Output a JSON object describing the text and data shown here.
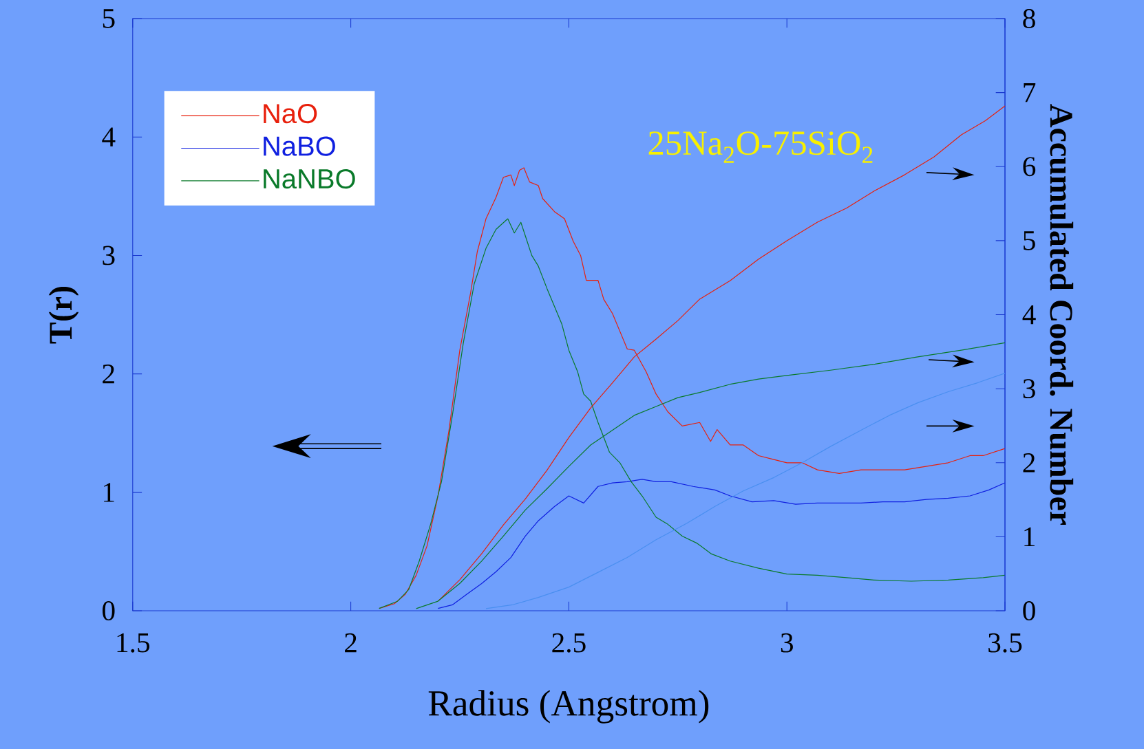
{
  "chart_data": {
    "type": "line",
    "xlabel": "Radius (Angstrom)",
    "ylabel": "T(r)",
    "y2label": "Accumulated Coord. Number",
    "annotations": [
      "25Na$_{2}$O-75SiO$_{2}$"
    ],
    "xlim": [
      1.5,
      3.5
    ],
    "xticks": [
      1.5,
      2,
      2.5,
      3,
      3.5
    ],
    "ylim": [
      0,
      5
    ],
    "yticks": [
      0,
      1,
      2,
      3,
      4,
      5
    ],
    "y2lim": [
      0,
      8
    ],
    "y2ticks": [
      0,
      1,
      2,
      3,
      4,
      5,
      6,
      7,
      8
    ],
    "legend": "top left",
    "series": [
      {
        "name": "NaO",
        "color": "#e8200c",
        "x": [
          2.065,
          2.1,
          2.125,
          2.15,
          2.175,
          2.2,
          2.225,
          2.25,
          2.275,
          2.29,
          2.31,
          2.333,
          2.35,
          2.367,
          2.375,
          2.387,
          2.397,
          2.41,
          2.43,
          2.44,
          2.467,
          2.49,
          2.51,
          2.527,
          2.54,
          2.567,
          2.58,
          2.6,
          2.617,
          2.634,
          2.65,
          2.677,
          2.7,
          2.727,
          2.76,
          2.8,
          2.825,
          2.84,
          2.87,
          2.9,
          2.935,
          2.967,
          3.0,
          3.035,
          3.07,
          3.12,
          3.17,
          3.22,
          3.27,
          3.32,
          3.37,
          3.42,
          3.45,
          3.5
        ],
        "values": [
          0.02,
          0.06,
          0.14,
          0.3,
          0.55,
          0.97,
          1.52,
          2.2,
          2.69,
          3.03,
          3.31,
          3.49,
          3.66,
          3.68,
          3.59,
          3.72,
          3.74,
          3.62,
          3.59,
          3.48,
          3.37,
          3.31,
          3.12,
          3.0,
          2.79,
          2.79,
          2.63,
          2.51,
          2.36,
          2.21,
          2.2,
          2.02,
          1.83,
          1.68,
          1.56,
          1.59,
          1.43,
          1.53,
          1.4,
          1.4,
          1.31,
          1.28,
          1.25,
          1.25,
          1.19,
          1.16,
          1.19,
          1.19,
          1.19,
          1.22,
          1.25,
          1.31,
          1.31,
          1.37
        ]
      },
      {
        "name": "NaBO",
        "color": "#1020e0",
        "x": [
          2.2,
          2.233,
          2.266,
          2.3,
          2.333,
          2.367,
          2.4,
          2.43,
          2.467,
          2.5,
          2.534,
          2.567,
          2.6,
          2.634,
          2.668,
          2.7,
          2.735,
          2.785,
          2.835,
          2.87,
          2.92,
          2.97,
          3.02,
          3.07,
          3.12,
          3.17,
          3.22,
          3.27,
          3.32,
          3.37,
          3.42,
          3.463,
          3.5
        ],
        "values": [
          0.02,
          0.05,
          0.14,
          0.23,
          0.33,
          0.45,
          0.63,
          0.76,
          0.88,
          0.97,
          0.91,
          1.05,
          1.08,
          1.09,
          1.11,
          1.09,
          1.09,
          1.05,
          1.02,
          0.97,
          0.92,
          0.93,
          0.9,
          0.91,
          0.91,
          0.91,
          0.92,
          0.92,
          0.94,
          0.95,
          0.97,
          1.02,
          1.08
        ]
      },
      {
        "name": "NaNBO",
        "color": "#0a7a2a",
        "x": [
          2.065,
          2.107,
          2.133,
          2.157,
          2.183,
          2.208,
          2.233,
          2.258,
          2.283,
          2.31,
          2.333,
          2.36,
          2.375,
          2.39,
          2.415,
          2.43,
          2.45,
          2.467,
          2.484,
          2.5,
          2.52,
          2.534,
          2.55,
          2.567,
          2.593,
          2.617,
          2.643,
          2.668,
          2.7,
          2.727,
          2.76,
          2.794,
          2.827,
          2.87,
          2.935,
          3.0,
          3.07,
          3.137,
          3.2,
          3.285,
          3.37,
          3.45,
          3.5
        ],
        "values": [
          0.02,
          0.08,
          0.18,
          0.42,
          0.73,
          1.09,
          1.65,
          2.26,
          2.76,
          3.06,
          3.22,
          3.31,
          3.19,
          3.28,
          3.0,
          2.91,
          2.72,
          2.57,
          2.42,
          2.2,
          2.02,
          1.83,
          1.77,
          1.59,
          1.34,
          1.25,
          1.09,
          0.97,
          0.79,
          0.73,
          0.63,
          0.57,
          0.48,
          0.42,
          0.36,
          0.31,
          0.3,
          0.28,
          0.26,
          0.25,
          0.26,
          0.28,
          0.3
        ]
      },
      {
        "color": "#e8200c",
        "axis": "y2",
        "x": [
          2.2,
          2.25,
          2.3,
          2.35,
          2.4,
          2.45,
          2.5,
          2.55,
          2.6,
          2.65,
          2.7,
          2.75,
          2.8,
          2.87,
          2.935,
          3.0,
          3.07,
          3.137,
          3.2,
          3.27,
          3.337,
          3.4,
          3.455,
          3.5
        ],
        "values": [
          0.13,
          0.42,
          0.77,
          1.16,
          1.51,
          1.9,
          2.34,
          2.74,
          3.08,
          3.43,
          3.67,
          3.92,
          4.21,
          4.46,
          4.75,
          5.0,
          5.25,
          5.44,
          5.67,
          5.89,
          6.13,
          6.43,
          6.62,
          6.82
        ]
      },
      {
        "color": "#4a8ff0",
        "axis": "y2",
        "x": [
          2.31,
          2.37,
          2.43,
          2.5,
          2.567,
          2.634,
          2.7,
          2.77,
          2.835,
          2.9,
          2.97,
          3.035,
          3.1,
          3.17,
          3.235,
          3.3,
          3.37,
          3.437,
          3.5
        ],
        "values": [
          0.03,
          0.08,
          0.18,
          0.32,
          0.52,
          0.72,
          0.96,
          1.18,
          1.41,
          1.62,
          1.8,
          2.0,
          2.22,
          2.44,
          2.64,
          2.81,
          2.96,
          3.08,
          3.21
        ]
      },
      {
        "color": "#0a7a2a",
        "axis": "y2",
        "x": [
          2.15,
          2.2,
          2.25,
          2.3,
          2.35,
          2.4,
          2.45,
          2.5,
          2.55,
          2.6,
          2.65,
          2.7,
          2.75,
          2.8,
          2.87,
          2.935,
          3.0,
          3.1,
          3.2,
          3.3,
          3.4,
          3.5
        ],
        "values": [
          0.03,
          0.13,
          0.37,
          0.67,
          1.01,
          1.36,
          1.65,
          1.95,
          2.24,
          2.44,
          2.64,
          2.76,
          2.88,
          2.95,
          3.06,
          3.13,
          3.18,
          3.25,
          3.33,
          3.43,
          3.52,
          3.62
        ]
      }
    ]
  }
}
